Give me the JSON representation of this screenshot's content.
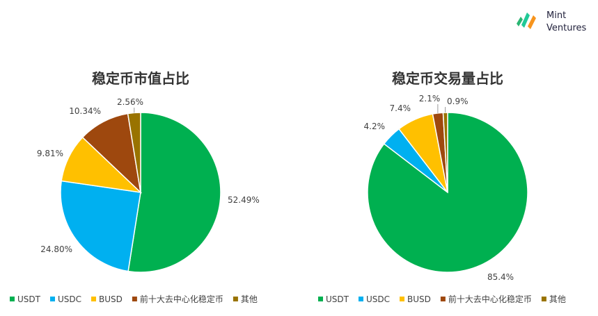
{
  "brand": {
    "line1": "Mint",
    "line2": "Ventures"
  },
  "colors": {
    "USDT": "#00B050",
    "USDC": "#00B0F0",
    "BUSD": "#FFC000",
    "dec": "#9E480E",
    "other": "#997300"
  },
  "chart_data": [
    {
      "type": "pie",
      "title": "稳定币市值占比",
      "categories": [
        "USDT",
        "USDC",
        "BUSD",
        "前十大去中心化稳定币",
        "其他"
      ],
      "values": [
        52.49,
        24.8,
        9.81,
        10.34,
        2.56
      ],
      "labels": [
        "52.49%",
        "24.80%",
        "9.81%",
        "10.34%",
        "2.56%"
      ],
      "legend_position": "bottom"
    },
    {
      "type": "pie",
      "title": "稳定币交易量占比",
      "categories": [
        "USDT",
        "USDC",
        "BUSD",
        "前十大去中心化稳定币",
        "其他"
      ],
      "values": [
        85.4,
        4.2,
        7.4,
        2.1,
        0.9
      ],
      "labels": [
        "85.4%",
        "4.2%",
        "7.4%",
        "2.1%",
        "0.9%"
      ],
      "legend_position": "bottom"
    }
  ]
}
